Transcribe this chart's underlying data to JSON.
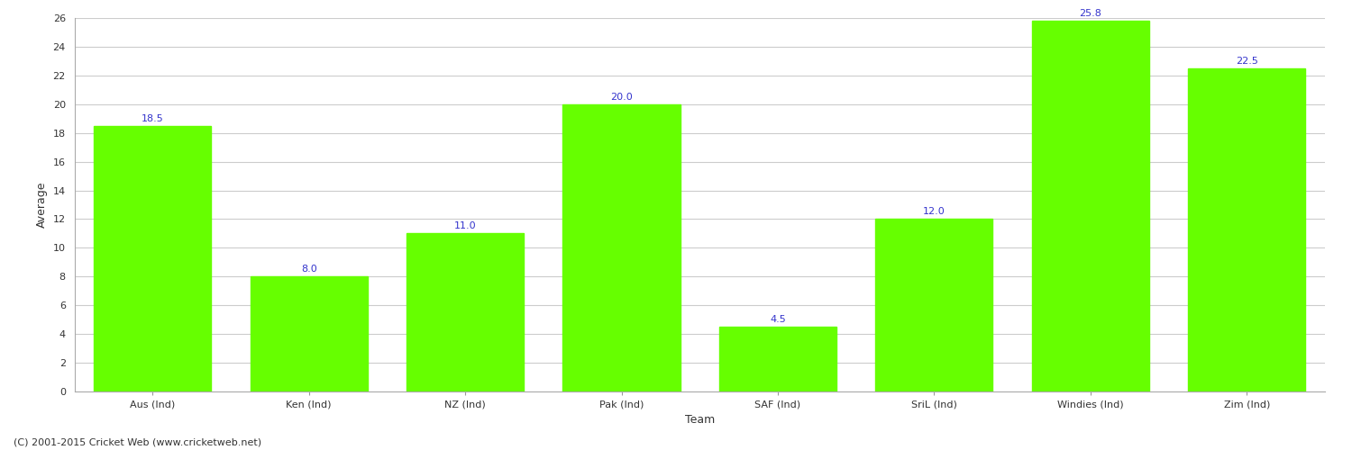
{
  "categories": [
    "Aus (Ind)",
    "Ken (Ind)",
    "NZ (Ind)",
    "Pak (Ind)",
    "SAF (Ind)",
    "SriL (Ind)",
    "Windies (Ind)",
    "Zim (Ind)"
  ],
  "values": [
    18.5,
    8.0,
    11.0,
    20.0,
    4.5,
    12.0,
    25.8,
    22.5
  ],
  "bar_color": "#66ff00",
  "bar_edge_color": "#66ff00",
  "value_label_color": "#3333cc",
  "value_label_fontsize": 8,
  "xlabel": "Team",
  "ylabel": "Average",
  "ylim": [
    0,
    26
  ],
  "yticks": [
    0,
    2,
    4,
    6,
    8,
    10,
    12,
    14,
    16,
    18,
    20,
    22,
    24,
    26
  ],
  "grid_color": "#cccccc",
  "background_color": "#ffffff",
  "tick_label_fontsize": 8,
  "axis_label_fontsize": 9,
  "footer_text": "(C) 2001-2015 Cricket Web (www.cricketweb.net)",
  "footer_fontsize": 8,
  "footer_color": "#333333",
  "bar_width": 0.75
}
